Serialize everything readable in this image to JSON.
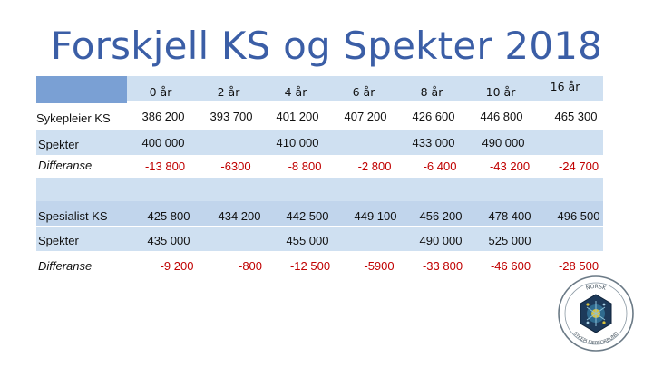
{
  "title": "Forskjell KS og Spekter 2018",
  "columns": [
    "0 år",
    "2 år",
    "4 år",
    "6 år",
    "8 år",
    "10 år",
    "16 år"
  ],
  "rows": [
    {
      "label": "Sykepleier KS",
      "values": [
        "386 200",
        "393 700",
        "401 200",
        "407 200",
        "426 600",
        "446 800",
        "465 300"
      ]
    },
    {
      "label": "Spekter",
      "values": [
        "400 000",
        "",
        "410 000",
        "",
        "433 000",
        "490 000",
        ""
      ]
    },
    {
      "label": "Differanse",
      "values": [
        "-13 800",
        "-6300",
        "-8 800",
        "-2 800",
        "-6 400",
        "-43 200",
        "-24 700"
      ]
    },
    {
      "label": "",
      "values": [
        "",
        "",
        "",
        "",
        "",
        "",
        ""
      ]
    },
    {
      "label": "Spesialist KS",
      "values": [
        "425 800",
        "434 200",
        "442 500",
        "449 100",
        "456 200",
        "478 400",
        "496 500"
      ]
    },
    {
      "label": "Spekter",
      "values": [
        "435 000",
        "",
        "455 000",
        "",
        "490 000",
        "525 000",
        ""
      ]
    },
    {
      "label": "Differanse",
      "values": [
        "-9 200",
        "-800",
        "-12 500",
        "-5900",
        "-33 800",
        "-46 600",
        "-28 500"
      ]
    }
  ],
  "colors": {
    "title": "#3b5ea6",
    "negative": "#c00000",
    "band_light": "#cfe0f1",
    "band_dark": "#c1d5ec",
    "header_accent": "#7aa0d4"
  },
  "logo": {
    "text_top": "NORSK",
    "text_bottom": "SYKEPLEIERFORBUND"
  }
}
